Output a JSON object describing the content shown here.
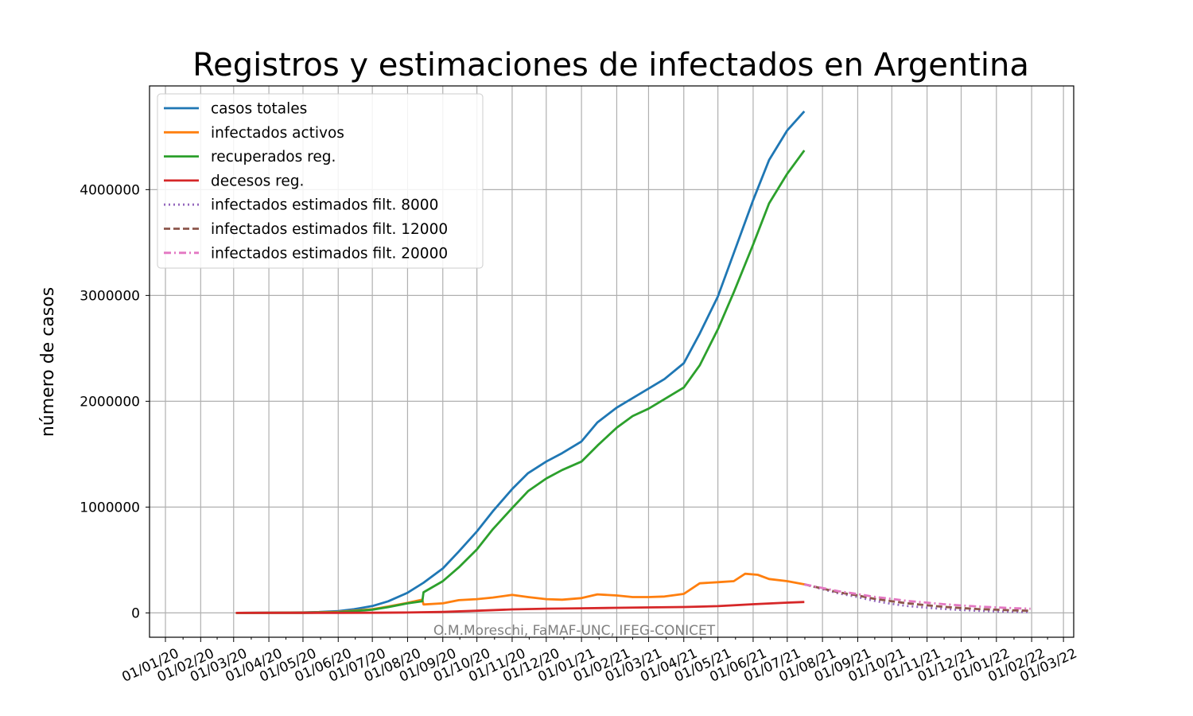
{
  "chart_data": {
    "type": "line",
    "title": "Registros y estimaciones de infectados en Argentina",
    "xlabel": "",
    "ylabel": "número de casos",
    "credit": "O.M.Moreschi, FaMAF-UNC, IFEG-CONICET",
    "xlim": [
      "2019-12-18",
      "2022-03-10"
    ],
    "ylim": [
      -230000,
      4980000
    ],
    "grid": true,
    "legend_position": "upper-left",
    "x_ticks": [
      {
        "date": "2020-01-01",
        "label": "01/01/20"
      },
      {
        "date": "2020-02-01",
        "label": "01/02/20"
      },
      {
        "date": "2020-03-01",
        "label": "01/03/20"
      },
      {
        "date": "2020-04-01",
        "label": "01/04/20"
      },
      {
        "date": "2020-05-01",
        "label": "01/05/20"
      },
      {
        "date": "2020-06-01",
        "label": "01/06/20"
      },
      {
        "date": "2020-07-01",
        "label": "01/07/20"
      },
      {
        "date": "2020-08-01",
        "label": "01/08/20"
      },
      {
        "date": "2020-09-01",
        "label": "01/09/20"
      },
      {
        "date": "2020-10-01",
        "label": "01/10/20"
      },
      {
        "date": "2020-11-01",
        "label": "01/11/20"
      },
      {
        "date": "2020-12-01",
        "label": "01/12/20"
      },
      {
        "date": "2021-01-01",
        "label": "01/01/21"
      },
      {
        "date": "2021-02-01",
        "label": "01/02/21"
      },
      {
        "date": "2021-03-01",
        "label": "01/03/21"
      },
      {
        "date": "2021-04-01",
        "label": "01/04/21"
      },
      {
        "date": "2021-05-01",
        "label": "01/05/21"
      },
      {
        "date": "2021-06-01",
        "label": "01/06/21"
      },
      {
        "date": "2021-07-01",
        "label": "01/07/21"
      },
      {
        "date": "2021-08-01",
        "label": "01/08/21"
      },
      {
        "date": "2021-09-01",
        "label": "01/09/21"
      },
      {
        "date": "2021-10-01",
        "label": "01/10/21"
      },
      {
        "date": "2021-11-01",
        "label": "01/11/21"
      },
      {
        "date": "2021-12-01",
        "label": "01/12/21"
      },
      {
        "date": "2022-01-01",
        "label": "01/01/22"
      },
      {
        "date": "2022-02-01",
        "label": "01/02/22"
      },
      {
        "date": "2022-03-01",
        "label": "01/03/22"
      }
    ],
    "y_ticks": [
      {
        "value": 0,
        "label": "0"
      },
      {
        "value": 1000000,
        "label": "1000000"
      },
      {
        "value": 2000000,
        "label": "2000000"
      },
      {
        "value": 3000000,
        "label": "3000000"
      },
      {
        "value": 4000000,
        "label": "4000000"
      }
    ],
    "series": [
      {
        "name": "casos totales",
        "color": "#1f77b4",
        "style": "solid",
        "points": [
          [
            "2020-03-03",
            0
          ],
          [
            "2020-05-01",
            4500
          ],
          [
            "2020-05-15",
            8000
          ],
          [
            "2020-06-01",
            17000
          ],
          [
            "2020-06-15",
            35000
          ],
          [
            "2020-07-01",
            65000
          ],
          [
            "2020-07-15",
            110000
          ],
          [
            "2020-08-01",
            190000
          ],
          [
            "2020-08-15",
            285000
          ],
          [
            "2020-09-01",
            420000
          ],
          [
            "2020-09-15",
            580000
          ],
          [
            "2020-10-01",
            770000
          ],
          [
            "2020-10-15",
            960000
          ],
          [
            "2020-11-01",
            1170000
          ],
          [
            "2020-11-15",
            1320000
          ],
          [
            "2020-12-01",
            1430000
          ],
          [
            "2020-12-15",
            1510000
          ],
          [
            "2021-01-01",
            1620000
          ],
          [
            "2021-01-15",
            1800000
          ],
          [
            "2021-02-01",
            1940000
          ],
          [
            "2021-02-15",
            2030000
          ],
          [
            "2021-03-01",
            2120000
          ],
          [
            "2021-03-15",
            2210000
          ],
          [
            "2021-04-01",
            2360000
          ],
          [
            "2021-04-15",
            2640000
          ],
          [
            "2021-05-01",
            2990000
          ],
          [
            "2021-05-15",
            3400000
          ],
          [
            "2021-06-01",
            3900000
          ],
          [
            "2021-06-15",
            4280000
          ],
          [
            "2021-07-01",
            4560000
          ],
          [
            "2021-07-16",
            4740000
          ]
        ]
      },
      {
        "name": "infectados activos",
        "color": "#ff7f0e",
        "style": "solid",
        "points": [
          [
            "2020-03-03",
            0
          ],
          [
            "2020-05-01",
            3000
          ],
          [
            "2020-06-01",
            10000
          ],
          [
            "2020-07-01",
            35000
          ],
          [
            "2020-07-15",
            60000
          ],
          [
            "2020-08-01",
            95000
          ],
          [
            "2020-08-14",
            125000
          ],
          [
            "2020-08-15",
            80000
          ],
          [
            "2020-09-01",
            90000
          ],
          [
            "2020-09-15",
            120000
          ],
          [
            "2020-10-01",
            130000
          ],
          [
            "2020-10-15",
            145000
          ],
          [
            "2020-11-01",
            170000
          ],
          [
            "2020-11-15",
            150000
          ],
          [
            "2020-12-01",
            130000
          ],
          [
            "2020-12-15",
            125000
          ],
          [
            "2021-01-01",
            140000
          ],
          [
            "2021-01-15",
            175000
          ],
          [
            "2021-02-01",
            165000
          ],
          [
            "2021-02-15",
            150000
          ],
          [
            "2021-03-01",
            150000
          ],
          [
            "2021-03-15",
            155000
          ],
          [
            "2021-04-01",
            180000
          ],
          [
            "2021-04-15",
            280000
          ],
          [
            "2021-05-01",
            290000
          ],
          [
            "2021-05-15",
            300000
          ],
          [
            "2021-05-25",
            370000
          ],
          [
            "2021-06-05",
            360000
          ],
          [
            "2021-06-15",
            320000
          ],
          [
            "2021-07-01",
            300000
          ],
          [
            "2021-07-16",
            270000
          ]
        ]
      },
      {
        "name": "recuperados reg.",
        "color": "#2ca02c",
        "style": "solid",
        "points": [
          [
            "2020-03-03",
            0
          ],
          [
            "2020-05-01",
            1000
          ],
          [
            "2020-06-01",
            5000
          ],
          [
            "2020-07-01",
            30000
          ],
          [
            "2020-07-15",
            55000
          ],
          [
            "2020-08-01",
            90000
          ],
          [
            "2020-08-14",
            110000
          ],
          [
            "2020-08-15",
            195000
          ],
          [
            "2020-09-01",
            300000
          ],
          [
            "2020-09-15",
            430000
          ],
          [
            "2020-10-01",
            600000
          ],
          [
            "2020-10-15",
            790000
          ],
          [
            "2020-11-01",
            990000
          ],
          [
            "2020-11-15",
            1150000
          ],
          [
            "2020-12-01",
            1270000
          ],
          [
            "2020-12-15",
            1350000
          ],
          [
            "2021-01-01",
            1430000
          ],
          [
            "2021-01-15",
            1580000
          ],
          [
            "2021-02-01",
            1750000
          ],
          [
            "2021-02-15",
            1860000
          ],
          [
            "2021-03-01",
            1930000
          ],
          [
            "2021-03-15",
            2020000
          ],
          [
            "2021-04-01",
            2130000
          ],
          [
            "2021-04-15",
            2340000
          ],
          [
            "2021-05-01",
            2680000
          ],
          [
            "2021-05-15",
            3030000
          ],
          [
            "2021-06-01",
            3480000
          ],
          [
            "2021-06-15",
            3870000
          ],
          [
            "2021-07-01",
            4150000
          ],
          [
            "2021-07-16",
            4370000
          ]
        ]
      },
      {
        "name": "decesos reg.",
        "color": "#d62728",
        "style": "solid",
        "points": [
          [
            "2020-03-03",
            0
          ],
          [
            "2020-06-01",
            500
          ],
          [
            "2020-07-01",
            1500
          ],
          [
            "2020-08-01",
            4000
          ],
          [
            "2020-09-01",
            9000
          ],
          [
            "2020-10-01",
            20000
          ],
          [
            "2020-11-01",
            33000
          ],
          [
            "2020-12-01",
            40000
          ],
          [
            "2021-01-01",
            44000
          ],
          [
            "2021-02-01",
            48000
          ],
          [
            "2021-03-01",
            52000
          ],
          [
            "2021-04-01",
            56000
          ],
          [
            "2021-05-01",
            64000
          ],
          [
            "2021-06-01",
            82000
          ],
          [
            "2021-07-01",
            97000
          ],
          [
            "2021-07-16",
            103000
          ]
        ]
      },
      {
        "name": "infectados estimados filt. 8000",
        "color": "#9467bd",
        "style": "dotted",
        "points": [
          [
            "2021-07-16",
            270000
          ],
          [
            "2021-08-01",
            225000
          ],
          [
            "2021-08-15",
            185000
          ],
          [
            "2021-09-01",
            150000
          ],
          [
            "2021-09-15",
            115000
          ],
          [
            "2021-10-01",
            85000
          ],
          [
            "2021-10-15",
            65000
          ],
          [
            "2021-11-01",
            50000
          ],
          [
            "2021-11-15",
            38000
          ],
          [
            "2021-12-01",
            28000
          ],
          [
            "2021-12-15",
            20000
          ],
          [
            "2022-01-01",
            14000
          ],
          [
            "2022-01-15",
            10000
          ],
          [
            "2022-01-31",
            7000
          ]
        ]
      },
      {
        "name": "infectados estimados filt. 12000",
        "color": "#8c564b",
        "style": "dashed",
        "points": [
          [
            "2021-07-16",
            270000
          ],
          [
            "2021-08-01",
            230000
          ],
          [
            "2021-08-15",
            195000
          ],
          [
            "2021-09-01",
            165000
          ],
          [
            "2021-09-15",
            135000
          ],
          [
            "2021-10-01",
            110000
          ],
          [
            "2021-10-15",
            90000
          ],
          [
            "2021-11-01",
            72000
          ],
          [
            "2021-11-15",
            58000
          ],
          [
            "2021-12-01",
            46000
          ],
          [
            "2021-12-15",
            37000
          ],
          [
            "2022-01-01",
            30000
          ],
          [
            "2022-01-15",
            24000
          ],
          [
            "2022-01-31",
            20000
          ]
        ]
      },
      {
        "name": "infectados estimados filt. 20000",
        "color": "#e377c2",
        "style": "dashdot",
        "points": [
          [
            "2021-07-16",
            270000
          ],
          [
            "2021-08-01",
            235000
          ],
          [
            "2021-08-15",
            205000
          ],
          [
            "2021-09-01",
            178000
          ],
          [
            "2021-09-15",
            153000
          ],
          [
            "2021-10-01",
            132000
          ],
          [
            "2021-10-15",
            113000
          ],
          [
            "2021-11-01",
            97000
          ],
          [
            "2021-11-15",
            83000
          ],
          [
            "2021-12-01",
            71000
          ],
          [
            "2021-12-15",
            61000
          ],
          [
            "2022-01-01",
            52000
          ],
          [
            "2022-01-15",
            45000
          ],
          [
            "2022-01-31",
            39000
          ]
        ]
      }
    ]
  }
}
